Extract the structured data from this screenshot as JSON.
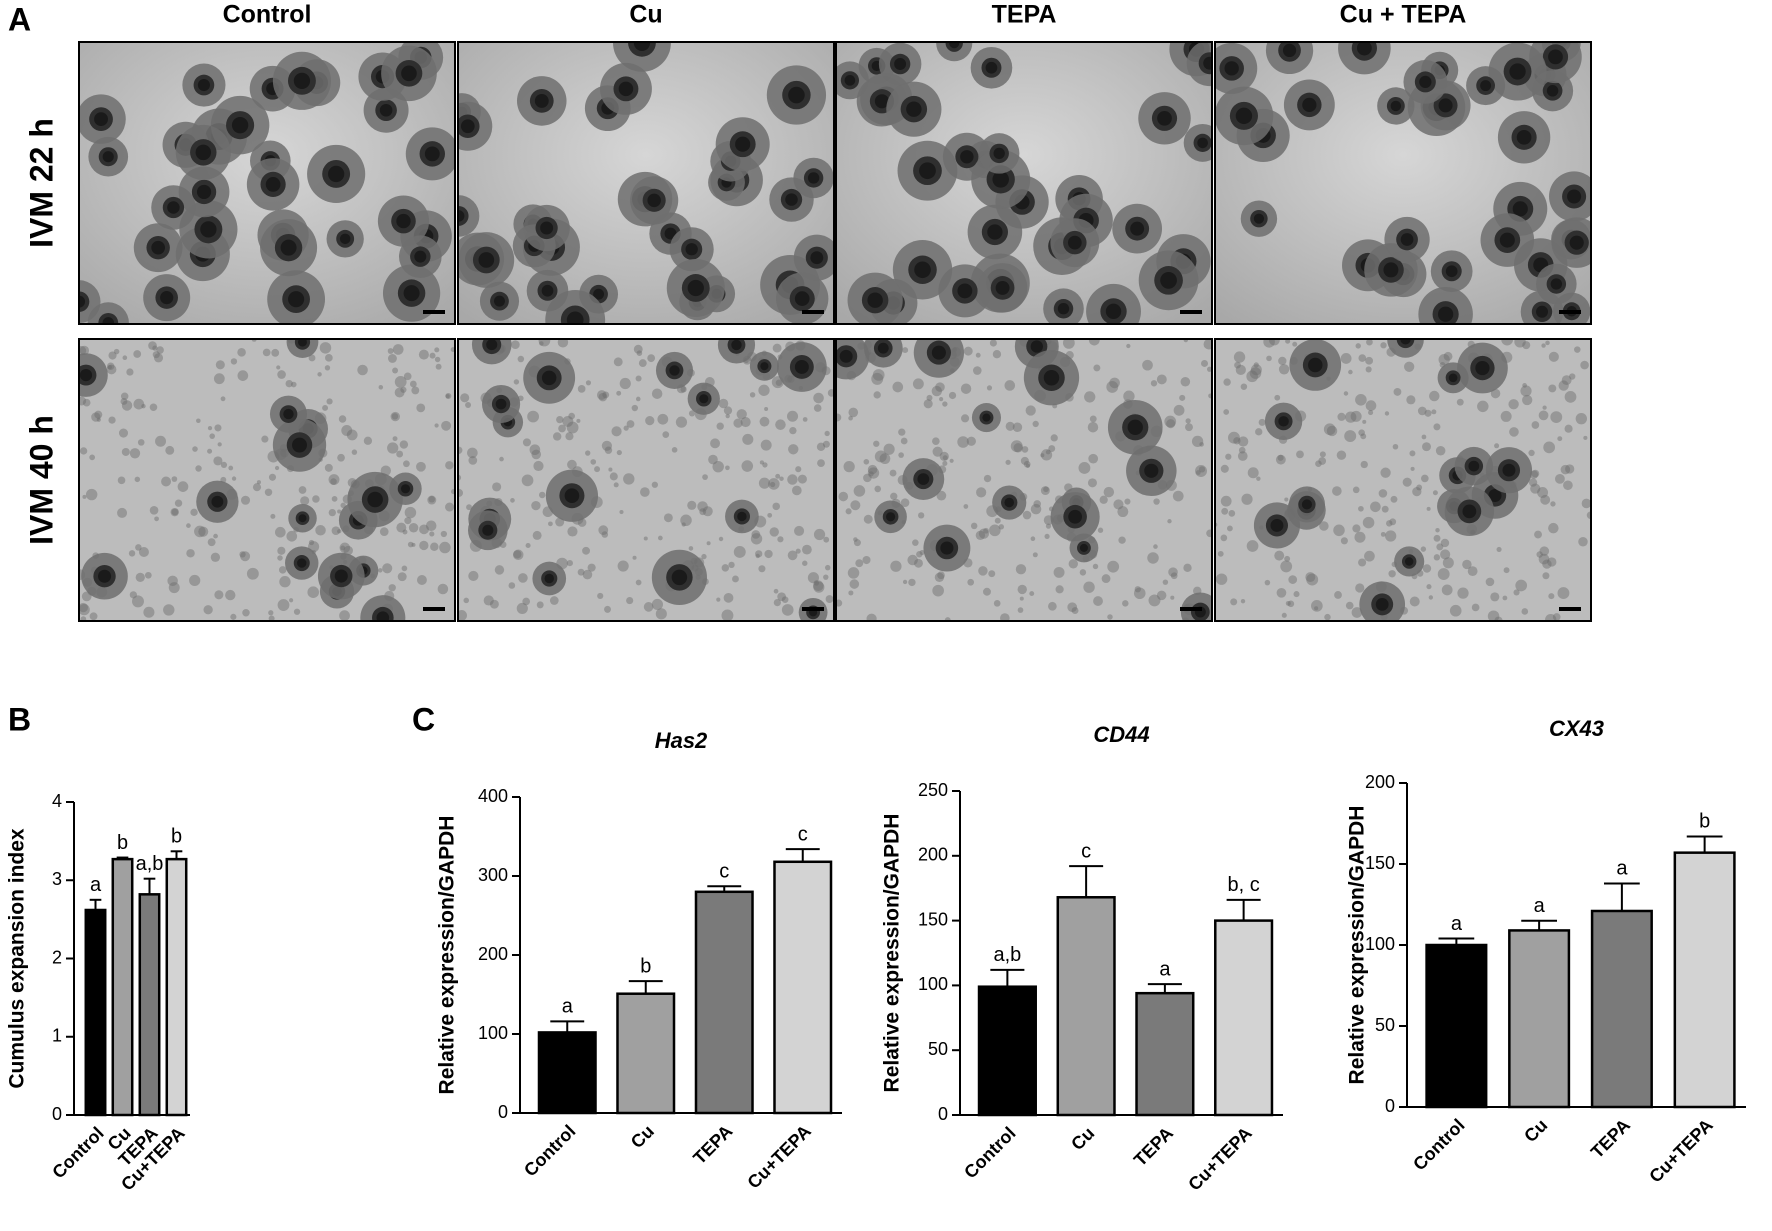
{
  "panel_labels": [
    "A",
    "B",
    "C"
  ],
  "micrographs": {
    "columns": [
      "Control",
      "Cu",
      "TEPA",
      "Cu + TEPA"
    ],
    "rows": [
      "IVM 22 h",
      "IVM 40 h"
    ]
  },
  "chart_data": [
    {
      "type": "bar",
      "ylabel": "Cumulus expansion index",
      "categories": [
        "Control",
        "Cu",
        "TEPA",
        "Cu+TEPA"
      ],
      "values": [
        2.62,
        3.27,
        2.82,
        3.27
      ],
      "errors": [
        0.13,
        0.02,
        0.2,
        0.1
      ],
      "annotations": [
        "a",
        "b",
        "a,b",
        "b"
      ],
      "colors": [
        "#000000",
        "#a0a0a0",
        "#7a7a7a",
        "#d3d3d3"
      ],
      "ylim": [
        0,
        4
      ],
      "yticks": [
        0,
        1,
        2,
        3,
        4
      ]
    },
    {
      "type": "bar",
      "title": "Has2",
      "ylabel": "Relative expression/GAPDH",
      "categories": [
        "Control",
        "Cu",
        "TEPA",
        "Cu+TEPA"
      ],
      "values": [
        102,
        151,
        280,
        318
      ],
      "errors": [
        14,
        16,
        7,
        16
      ],
      "annotations": [
        "a",
        "b",
        "c",
        "c"
      ],
      "colors": [
        "#000000",
        "#a0a0a0",
        "#7a7a7a",
        "#d3d3d3"
      ],
      "ylim": [
        0,
        400
      ],
      "yticks": [
        0,
        100,
        200,
        300,
        400
      ]
    },
    {
      "type": "bar",
      "title": "CD44",
      "ylabel": "Relative expression/GAPDH",
      "categories": [
        "Control",
        "Cu",
        "TEPA",
        "Cu+TEPA"
      ],
      "values": [
        99,
        168,
        94,
        150
      ],
      "errors": [
        13,
        24,
        7,
        16
      ],
      "annotations": [
        "a,b",
        "c",
        "a",
        "b, c"
      ],
      "colors": [
        "#000000",
        "#a0a0a0",
        "#7a7a7a",
        "#d3d3d3"
      ],
      "ylim": [
        0,
        250
      ],
      "yticks": [
        0,
        50,
        100,
        150,
        200,
        250
      ]
    },
    {
      "type": "bar",
      "title": "CX43",
      "ylabel": "Relative expression/GAPDH",
      "categories": [
        "Control",
        "Cu",
        "TEPA",
        "Cu+TEPA"
      ],
      "values": [
        100,
        109,
        121,
        157
      ],
      "errors": [
        4,
        6,
        17,
        10
      ],
      "annotations": [
        "a",
        "a",
        "a",
        "b"
      ],
      "colors": [
        "#000000",
        "#a0a0a0",
        "#7a7a7a",
        "#d3d3d3"
      ],
      "ylim": [
        0,
        200
      ],
      "yticks": [
        0,
        50,
        100,
        150,
        200
      ]
    }
  ]
}
